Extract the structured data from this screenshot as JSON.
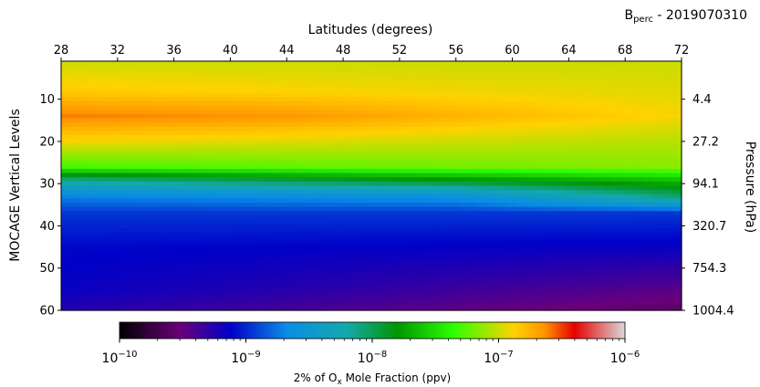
{
  "chart_data": {
    "type": "heatmap",
    "title_main": "B",
    "title_sub": "perc",
    "title_suffix": " - 2019070310",
    "xlabel": "Latitudes (degrees)",
    "ylabel_left": "MOCAGE Vertical Levels",
    "ylabel_right": "Pressure (hPa)",
    "x_range": [
      28,
      72
    ],
    "x_ticks": [
      "28",
      "32",
      "36",
      "40",
      "44",
      "48",
      "52",
      "56",
      "60",
      "64",
      "68",
      "72"
    ],
    "y_range": [
      1,
      60
    ],
    "y_ticks_left": [
      {
        "level": 10,
        "label": "10"
      },
      {
        "level": 20,
        "label": "20"
      },
      {
        "level": 30,
        "label": "30"
      },
      {
        "level": 40,
        "label": "40"
      },
      {
        "level": 50,
        "label": "50"
      },
      {
        "level": 60,
        "label": "60"
      }
    ],
    "y_ticks_right": [
      {
        "level": 10,
        "label": "4.4"
      },
      {
        "level": 20,
        "label": "27.2"
      },
      {
        "level": 30,
        "label": "94.1"
      },
      {
        "level": 40,
        "label": "320.7"
      },
      {
        "level": 50,
        "label": "754.3"
      },
      {
        "level": 60,
        "label": "1004.4"
      }
    ],
    "colorbar": {
      "scale": "log",
      "range": [
        1e-10,
        1e-06
      ],
      "tick_exponents": [
        -10,
        -9,
        -8,
        -7,
        -6
      ],
      "label_main": "2% of O",
      "label_sub": "x",
      "label_suffix": " Mole Fraction (ppv)",
      "colormap": [
        "#000000",
        "#6a007a",
        "#0000c8",
        "#0a8ce6",
        "#14a9a9",
        "#009600",
        "#2cff00",
        "#ffd200",
        "#ff9600",
        "#e60000",
        "#d9d9d9"
      ]
    },
    "field_profile": [
      {
        "level": 1,
        "lat": 28,
        "log10": -7.0
      },
      {
        "level": 1,
        "lat": 72,
        "log10": -7.0
      },
      {
        "level": 8,
        "lat": 28,
        "log10": -6.85
      },
      {
        "level": 8,
        "lat": 72,
        "log10": -6.95
      },
      {
        "level": 14,
        "lat": 28,
        "log10": -6.6
      },
      {
        "level": 14,
        "lat": 44,
        "log10": -6.65
      },
      {
        "level": 14,
        "lat": 72,
        "log10": -6.9
      },
      {
        "level": 20,
        "lat": 28,
        "log10": -6.9
      },
      {
        "level": 20,
        "lat": 72,
        "log10": -7.05
      },
      {
        "level": 26,
        "lat": 28,
        "log10": -7.3
      },
      {
        "level": 26,
        "lat": 72,
        "log10": -7.15
      },
      {
        "level": 29,
        "lat": 28,
        "log10": -8.1
      },
      {
        "level": 29,
        "lat": 72,
        "log10": -7.6
      },
      {
        "level": 33,
        "lat": 28,
        "log10": -8.7
      },
      {
        "level": 33,
        "lat": 56,
        "log10": -8.6
      },
      {
        "level": 33,
        "lat": 72,
        "log10": -8.05
      },
      {
        "level": 37,
        "lat": 28,
        "log10": -8.95
      },
      {
        "level": 37,
        "lat": 72,
        "log10": -8.95
      },
      {
        "level": 45,
        "lat": 28,
        "log10": -9.1
      },
      {
        "level": 45,
        "lat": 72,
        "log10": -9.15
      },
      {
        "level": 55,
        "lat": 28,
        "log10": -9.15
      },
      {
        "level": 55,
        "lat": 72,
        "log10": -9.45
      },
      {
        "level": 60,
        "lat": 28,
        "log10": -9.25
      },
      {
        "level": 60,
        "lat": 72,
        "log10": -9.6
      }
    ]
  }
}
